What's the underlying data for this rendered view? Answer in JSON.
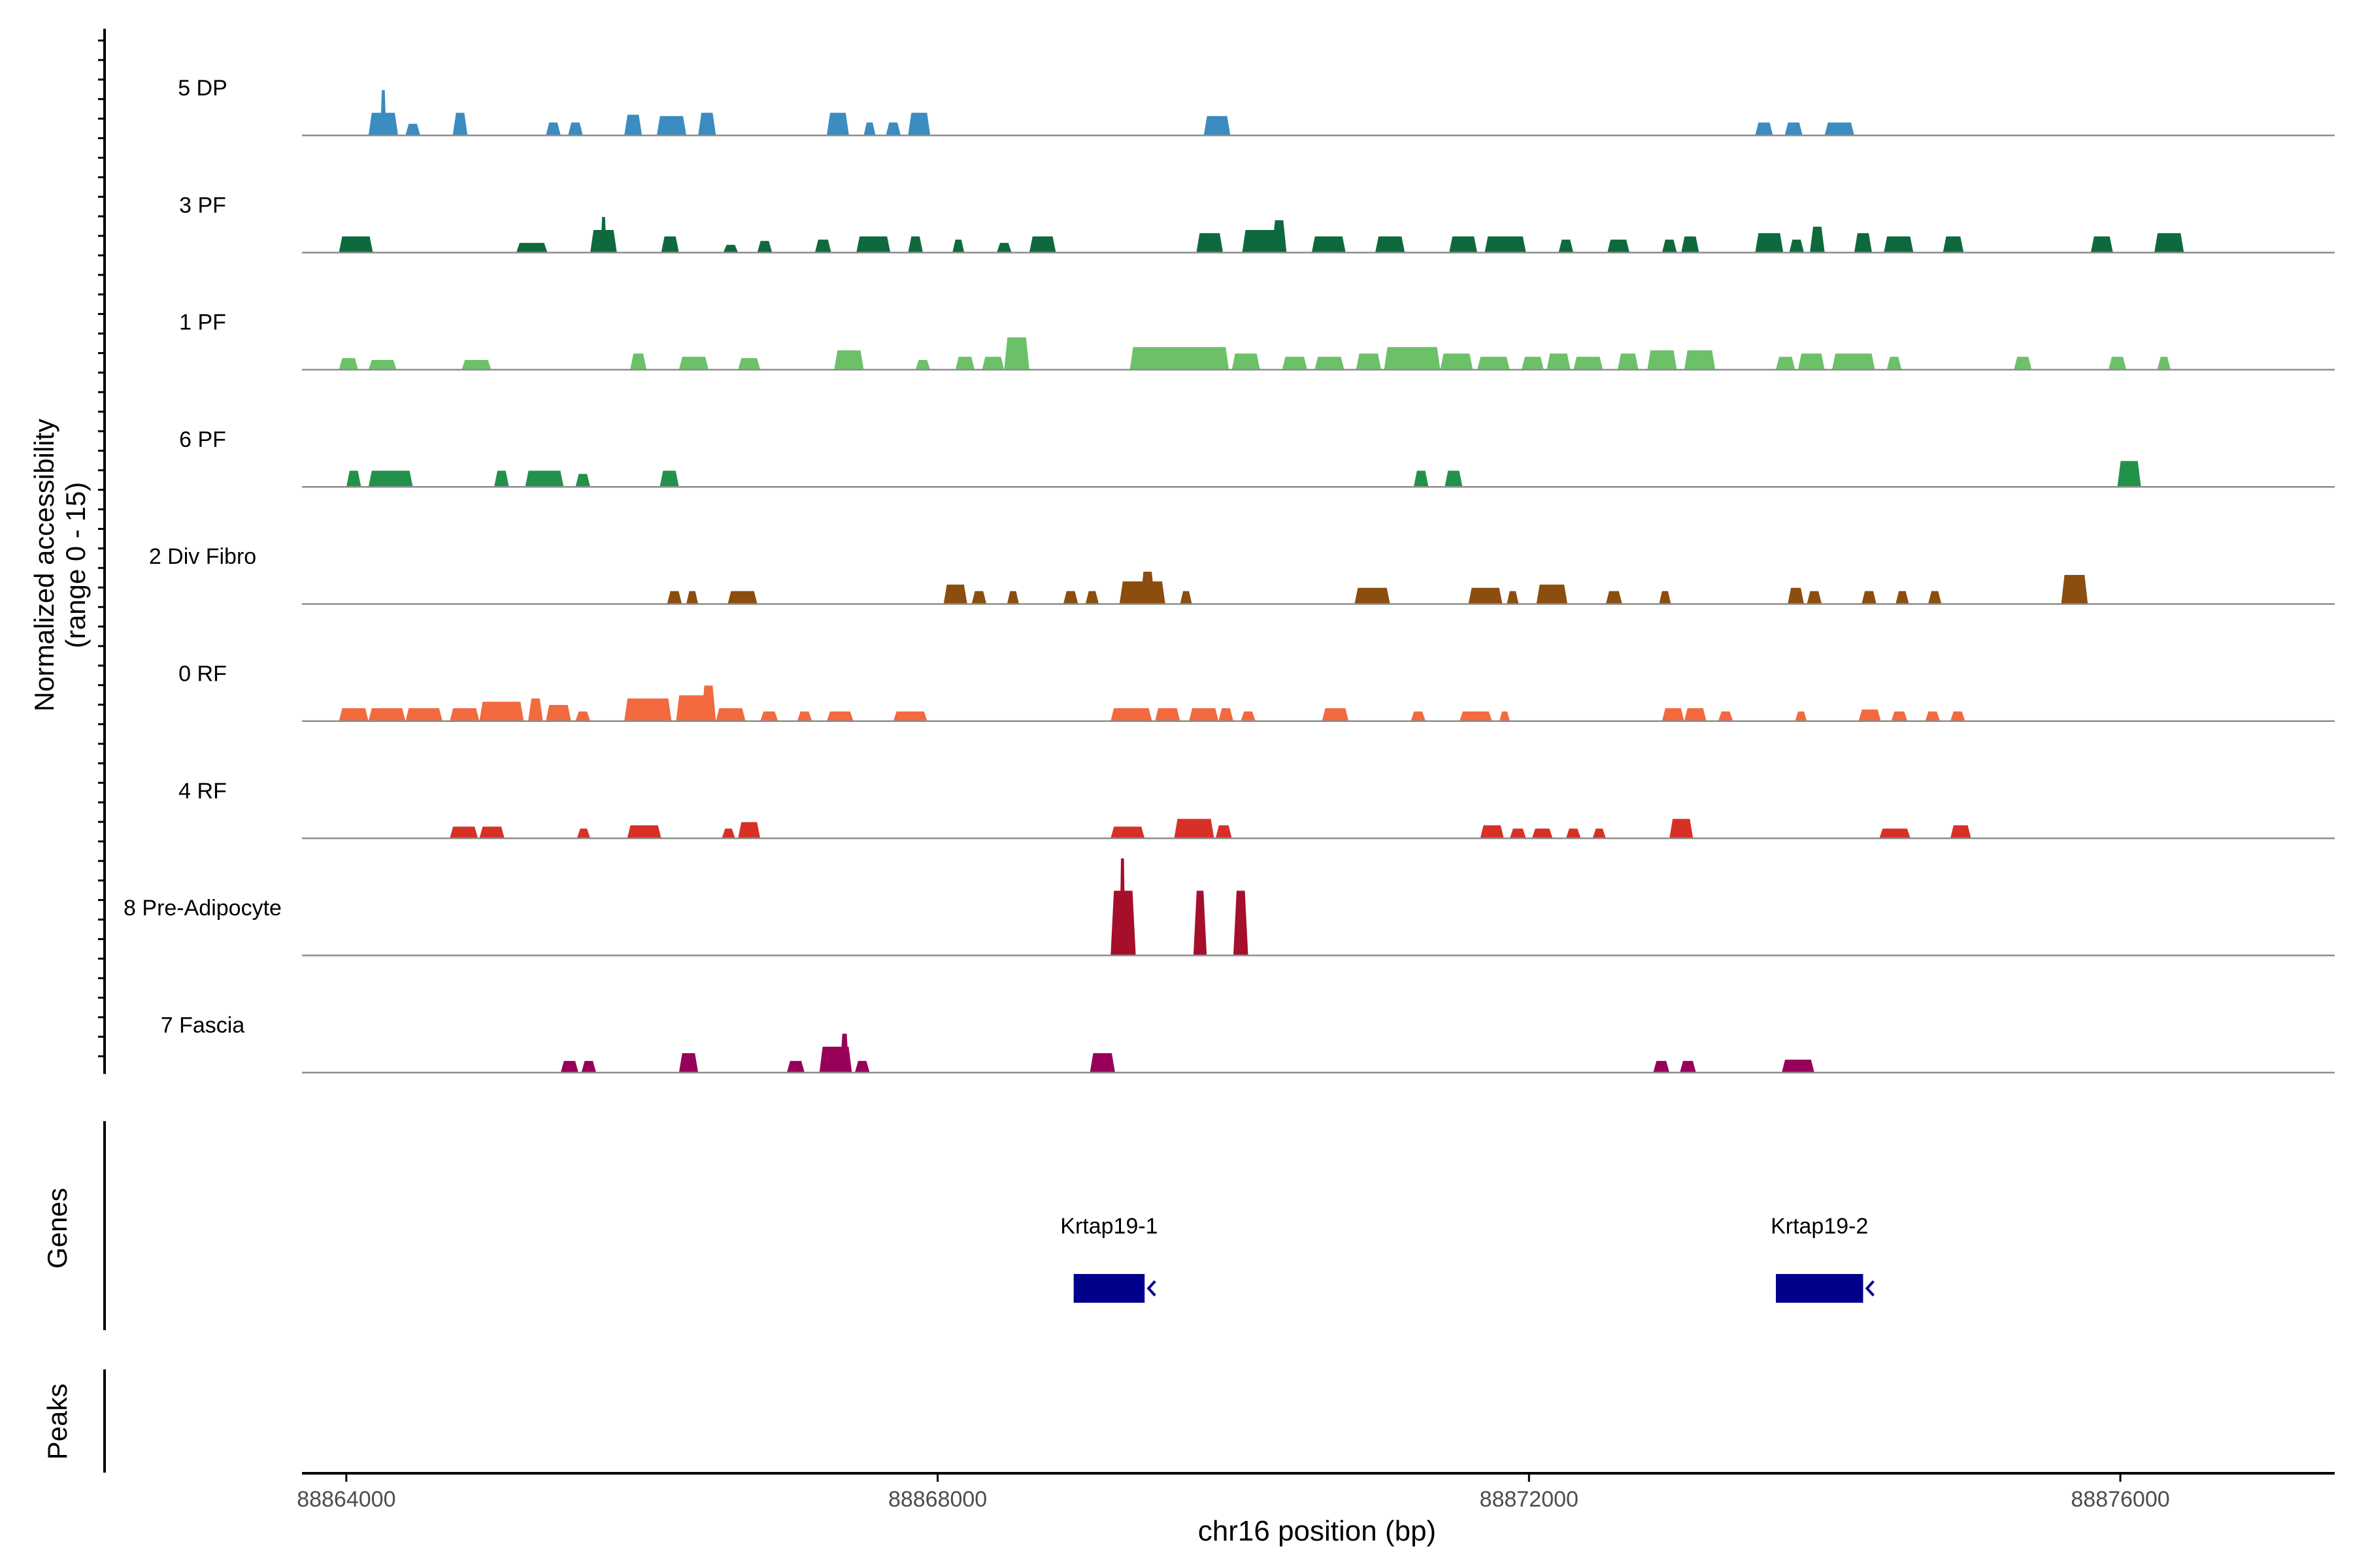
{
  "chart_data": {
    "type": "area",
    "title": "",
    "xlabel": "chr16 position (bp)",
    "ylabel_line1": "Normalized accessibility",
    "ylabel_line2": "(range 0 - 15)",
    "xlim": [
      88863700,
      88877450
    ],
    "ylim": [
      0,
      15
    ],
    "x_ticks": [
      88864000,
      88868000,
      88872000,
      88876000
    ],
    "x_tick_labels": [
      "88864000",
      "88868000",
      "88872000",
      "88876000"
    ],
    "panel_labels": {
      "genes": "Genes",
      "peaks": "Peaks"
    },
    "genes": [
      {
        "name": "Krtap19-1",
        "start": 88868920,
        "end": 88869400,
        "strand": "-"
      },
      {
        "name": "Krtap19-2",
        "start": 88873670,
        "end": 88874260,
        "strand": "-"
      }
    ],
    "series": [
      {
        "name": "5 DP",
        "color": "#3A8CC1",
        "peaks": [
          [
            88864150,
            88864350,
            3.5
          ],
          [
            88864230,
            88864270,
            7.0
          ],
          [
            88864400,
            88864500,
            1.8
          ],
          [
            88864720,
            88864820,
            3.5
          ],
          [
            88865350,
            88865450,
            2.0
          ],
          [
            88865500,
            88865600,
            2.0
          ],
          [
            88865880,
            88866000,
            3.2
          ],
          [
            88866100,
            88866300,
            3.0
          ],
          [
            88866380,
            88866500,
            3.5
          ],
          [
            88867250,
            88867400,
            3.5
          ],
          [
            88867500,
            88867580,
            2.0
          ],
          [
            88867650,
            88867750,
            2.0
          ],
          [
            88867800,
            88867950,
            3.5
          ],
          [
            88869800,
            88869980,
            3.0
          ],
          [
            88873530,
            88873650,
            2.0
          ],
          [
            88873730,
            88873850,
            2.0
          ],
          [
            88874000,
            88874200,
            2.0
          ]
        ]
      },
      {
        "name": "3 PF",
        "color": "#0E6A3C",
        "peaks": [
          [
            88863950,
            88864180,
            2.5
          ],
          [
            88865150,
            88865360,
            1.5
          ],
          [
            88865650,
            88865830,
            3.5
          ],
          [
            88865720,
            88865760,
            5.5
          ],
          [
            88866130,
            88866250,
            2.5
          ],
          [
            88866550,
            88866650,
            1.2
          ],
          [
            88866780,
            88866880,
            1.8
          ],
          [
            88867170,
            88867280,
            2.0
          ],
          [
            88867450,
            88867680,
            2.5
          ],
          [
            88867800,
            88867900,
            2.5
          ],
          [
            88868100,
            88868180,
            2.0
          ],
          [
            88868400,
            88868500,
            1.5
          ],
          [
            88868620,
            88868800,
            2.5
          ],
          [
            88869750,
            88869930,
            3.0
          ],
          [
            88870060,
            88870360,
            3.5
          ],
          [
            88870260,
            88870360,
            5.0
          ],
          [
            88870530,
            88870760,
            2.5
          ],
          [
            88870960,
            88871160,
            2.5
          ],
          [
            88871460,
            88871650,
            2.5
          ],
          [
            88871700,
            88871980,
            2.5
          ],
          [
            88872200,
            88872300,
            2.0
          ],
          [
            88872530,
            88872680,
            2.0
          ],
          [
            88872900,
            88873000,
            2.0
          ],
          [
            88873030,
            88873150,
            2.5
          ],
          [
            88873530,
            88873720,
            3.0
          ],
          [
            88873760,
            88873860,
            2.0
          ],
          [
            88873900,
            88874000,
            4.0
          ],
          [
            88874200,
            88874320,
            3.0
          ],
          [
            88874400,
            88874600,
            2.5
          ],
          [
            88874800,
            88874940,
            2.5
          ],
          [
            88875800,
            88875950,
            2.5
          ],
          [
            88876230,
            88876430,
            3.0
          ]
        ]
      },
      {
        "name": "1 PF",
        "color": "#6CC168",
        "peaks": [
          [
            88863950,
            88864080,
            1.8
          ],
          [
            88864150,
            88864340,
            1.5
          ],
          [
            88864780,
            88864980,
            1.5
          ],
          [
            88865920,
            88866030,
            2.5
          ],
          [
            88866250,
            88866450,
            2.0
          ],
          [
            88866650,
            88866800,
            1.8
          ],
          [
            88867300,
            88867500,
            3.0
          ],
          [
            88867850,
            88867950,
            1.5
          ],
          [
            88868120,
            88868250,
            2.0
          ],
          [
            88868300,
            88868450,
            2.0
          ],
          [
            88868450,
            88868620,
            5.0
          ],
          [
            88869300,
            88869970,
            3.5
          ],
          [
            88869990,
            88870180,
            2.5
          ],
          [
            88870330,
            88870500,
            2.0
          ],
          [
            88870550,
            88870750,
            2.0
          ],
          [
            88870830,
            88871000,
            2.5
          ],
          [
            88871020,
            88871400,
            3.5
          ],
          [
            88871400,
            88871620,
            2.5
          ],
          [
            88871650,
            88871870,
            2.0
          ],
          [
            88871950,
            88872100,
            2.0
          ],
          [
            88872120,
            88872280,
            2.5
          ],
          [
            88872300,
            88872500,
            2.0
          ],
          [
            88872600,
            88872740,
            2.5
          ],
          [
            88872800,
            88873000,
            3.0
          ],
          [
            88873050,
            88873260,
            3.0
          ],
          [
            88873670,
            88873800,
            2.0
          ],
          [
            88873820,
            88874000,
            2.5
          ],
          [
            88874050,
            88874340,
            2.5
          ],
          [
            88874420,
            88874520,
            2.0
          ],
          [
            88875280,
            88875400,
            2.0
          ],
          [
            88875920,
            88876040,
            2.0
          ],
          [
            88876250,
            88876340,
            2.0
          ]
        ]
      },
      {
        "name": "6 PF",
        "color": "#22924A",
        "peaks": [
          [
            88864000,
            88864100,
            2.5
          ],
          [
            88864150,
            88864450,
            2.5
          ],
          [
            88865000,
            88865100,
            2.5
          ],
          [
            88865210,
            88865470,
            2.5
          ],
          [
            88865550,
            88865650,
            2.0
          ],
          [
            88866120,
            88866250,
            2.5
          ],
          [
            88871220,
            88871320,
            2.5
          ],
          [
            88871430,
            88871550,
            2.5
          ],
          [
            88875980,
            88876140,
            4.0
          ]
        ]
      },
      {
        "name": "2 Div Fibro",
        "color": "#8B4E0E",
        "peaks": [
          [
            88866170,
            88866270,
            2.0
          ],
          [
            88866300,
            88866380,
            2.0
          ],
          [
            88866580,
            88866780,
            2.0
          ],
          [
            88868040,
            88868200,
            3.0
          ],
          [
            88868230,
            88868330,
            2.0
          ],
          [
            88868470,
            88868550,
            2.0
          ],
          [
            88868850,
            88868950,
            2.0
          ],
          [
            88869000,
            88869090,
            2.0
          ],
          [
            88869230,
            88869540,
            3.5
          ],
          [
            88869370,
            88869470,
            5.0
          ],
          [
            88869640,
            88869720,
            2.0
          ],
          [
            88870820,
            88871060,
            2.5
          ],
          [
            88871590,
            88871820,
            2.5
          ],
          [
            88871850,
            88871930,
            2.0
          ],
          [
            88872050,
            88872260,
            3.0
          ],
          [
            88872520,
            88872630,
            2.0
          ],
          [
            88872880,
            88872960,
            2.0
          ],
          [
            88873750,
            88873860,
            2.5
          ],
          [
            88873880,
            88873980,
            2.0
          ],
          [
            88874250,
            88874350,
            2.0
          ],
          [
            88874480,
            88874570,
            2.0
          ],
          [
            88874700,
            88874790,
            2.0
          ],
          [
            88875600,
            88875780,
            4.5
          ]
        ]
      },
      {
        "name": "0 RF",
        "color": "#F26A3E",
        "peaks": [
          [
            88863950,
            88864150,
            2.0
          ],
          [
            88864150,
            88864400,
            2.0
          ],
          [
            88864400,
            88864650,
            2.0
          ],
          [
            88864700,
            88864900,
            2.0
          ],
          [
            88864900,
            88865200,
            3.0
          ],
          [
            88865230,
            88865330,
            3.5
          ],
          [
            88865350,
            88865520,
            2.5
          ],
          [
            88865550,
            88865650,
            1.5
          ],
          [
            88865880,
            88866200,
            3.5
          ],
          [
            88866230,
            88866500,
            4.0
          ],
          [
            88866400,
            88866500,
            5.5
          ],
          [
            88866500,
            88866700,
            2.0
          ],
          [
            88866800,
            88866920,
            1.5
          ],
          [
            88867050,
            88867150,
            1.5
          ],
          [
            88867250,
            88867430,
            1.5
          ],
          [
            88867700,
            88867930,
            1.5
          ],
          [
            88869170,
            88869450,
            2.0
          ],
          [
            88869470,
            88869640,
            2.0
          ],
          [
            88869700,
            88869900,
            2.0
          ],
          [
            88869900,
            88870000,
            2.0
          ],
          [
            88870050,
            88870150,
            1.5
          ],
          [
            88870600,
            88870780,
            2.0
          ],
          [
            88871200,
            88871300,
            1.5
          ],
          [
            88871530,
            88871750,
            1.5
          ],
          [
            88871800,
            88871870,
            1.5
          ],
          [
            88872900,
            88873050,
            2.0
          ],
          [
            88873050,
            88873200,
            2.0
          ],
          [
            88873280,
            88873380,
            1.5
          ],
          [
            88873800,
            88873880,
            1.5
          ],
          [
            88874230,
            88874380,
            1.8
          ],
          [
            88874450,
            88874560,
            1.5
          ],
          [
            88874680,
            88874780,
            1.5
          ],
          [
            88874850,
            88874950,
            1.5
          ]
        ]
      },
      {
        "name": "4 RF",
        "color": "#D73027",
        "peaks": [
          [
            88864700,
            88864890,
            1.8
          ],
          [
            88864900,
            88865070,
            1.8
          ],
          [
            88865560,
            88865650,
            1.5
          ],
          [
            88865900,
            88866130,
            2.0
          ],
          [
            88866540,
            88866630,
            1.5
          ],
          [
            88866650,
            88866800,
            2.5
          ],
          [
            88869170,
            88869400,
            1.8
          ],
          [
            88869600,
            88869870,
            3.0
          ],
          [
            88869880,
            88869990,
            2.0
          ],
          [
            88871670,
            88871830,
            2.0
          ],
          [
            88871870,
            88871980,
            1.5
          ],
          [
            88872020,
            88872160,
            1.5
          ],
          [
            88872250,
            88872350,
            1.5
          ],
          [
            88872430,
            88872520,
            1.5
          ],
          [
            88872950,
            88873110,
            3.0
          ],
          [
            88874370,
            88874580,
            1.5
          ],
          [
            88874850,
            88874990,
            2.0
          ]
        ]
      },
      {
        "name": "8 Pre-Adipocyte",
        "color": "#A50F2B",
        "peaks": [
          [
            88869170,
            88869340,
            10.0
          ],
          [
            88869230,
            88869270,
            15.0
          ],
          [
            88869730,
            88869820,
            10.0
          ],
          [
            88870000,
            88870100,
            10.0
          ]
        ]
      },
      {
        "name": "7 Fascia",
        "color": "#98005A",
        "peaks": [
          [
            88865450,
            88865570,
            1.8
          ],
          [
            88865590,
            88865690,
            1.8
          ],
          [
            88866250,
            88866380,
            3.0
          ],
          [
            88866980,
            88867100,
            1.8
          ],
          [
            88867200,
            88867420,
            4.0
          ],
          [
            88867340,
            88867400,
            6.0
          ],
          [
            88867440,
            88867540,
            1.8
          ],
          [
            88869030,
            88869200,
            3.0
          ],
          [
            88872840,
            88872950,
            1.8
          ],
          [
            88873020,
            88873130,
            1.8
          ],
          [
            88873710,
            88873930,
            2.0
          ]
        ]
      }
    ]
  }
}
